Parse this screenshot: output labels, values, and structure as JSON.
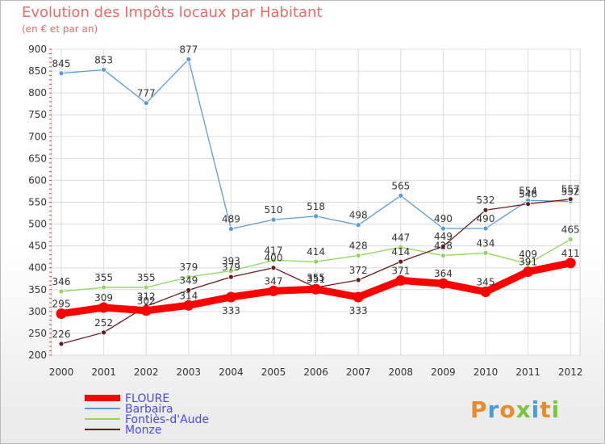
{
  "title": "Evolution des Impôts locaux par Habitant",
  "subtitle": "(en € et par an)",
  "brand": "Proxiti",
  "chart_data": {
    "type": "line",
    "title": "Evolution des Impôts locaux par Habitant",
    "subtitle": "(en € et par an)",
    "xlabel": "",
    "ylabel": "",
    "ylim": [
      200,
      900
    ],
    "yticks": [
      200,
      250,
      300,
      350,
      400,
      450,
      500,
      550,
      600,
      650,
      700,
      750,
      800,
      850,
      900
    ],
    "grid": true,
    "legend_position": "bottom-left",
    "categories": [
      "2000",
      "2001",
      "2002",
      "2003",
      "2004",
      "2005",
      "2006",
      "2007",
      "2008",
      "2009",
      "2010",
      "2011",
      "2012"
    ],
    "series": [
      {
        "name": "FLOURE",
        "color": "#ff0000",
        "values": [
          295,
          309,
          302,
          314,
          333,
          347,
          351,
          333,
          371,
          364,
          345,
          391,
          411
        ]
      },
      {
        "name": "Barbaira",
        "color": "#5b9bd5",
        "values": [
          845,
          853,
          777,
          877,
          489,
          510,
          518,
          498,
          565,
          490,
          490,
          554,
          552
        ]
      },
      {
        "name": "Fontiès-d'Aude",
        "color": "#8ed85a",
        "values": [
          346,
          355,
          355,
          379,
          393,
          417,
          414,
          428,
          447,
          428,
          434,
          409,
          465
        ]
      },
      {
        "name": "Monze",
        "color": "#6b1a1a",
        "values": [
          226,
          252,
          312,
          349,
          379,
          400,
          355,
          372,
          414,
          449,
          532,
          546,
          557
        ]
      }
    ],
    "data_labels": [
      [
        "295",
        "309",
        "302",
        "314",
        "333",
        "347",
        "351",
        "333",
        "371",
        "364",
        "345",
        "391",
        "411"
      ],
      [
        "845",
        "853",
        "777",
        "877",
        "489",
        "510",
        "518",
        "498",
        "565",
        "490",
        "490",
        "554",
        "552"
      ],
      [
        "346",
        "355",
        "355",
        "379",
        "393",
        "417",
        "414",
        "428",
        "447",
        "428",
        "434",
        "409",
        "465"
      ],
      [
        "226",
        "252",
        "312",
        "349",
        "379",
        "400",
        "355",
        "372",
        "414",
        "449",
        "532",
        "546",
        "557"
      ]
    ]
  }
}
